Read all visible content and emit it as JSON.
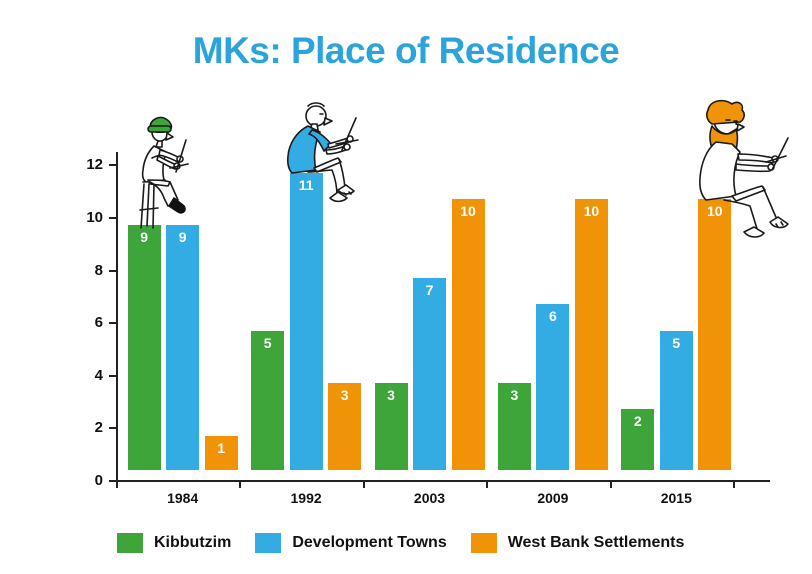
{
  "title": "MKs: Place of Residence",
  "title_color": "#2BA4DC",
  "chart_data": {
    "type": "bar",
    "title": "MKs: Place of Residence",
    "categories": [
      "1984",
      "1992",
      "2003",
      "2009",
      "2015"
    ],
    "series": [
      {
        "name": "Kibbutzim",
        "color": "#3EA53B",
        "values": [
          9,
          5,
          3,
          3,
          2
        ]
      },
      {
        "name": "Development Towns",
        "color": "#33ACE3",
        "values": [
          9,
          11,
          7,
          6,
          5
        ]
      },
      {
        "name": "West Bank Settlements",
        "color": "#F09306",
        "values": [
          1,
          3,
          10,
          10,
          10
        ]
      }
    ],
    "xlabel": "",
    "ylabel": "",
    "ylim": [
      0,
      12
    ],
    "yticks": [
      0,
      2,
      4,
      6,
      8,
      10,
      12
    ],
    "grid": false,
    "bar_value_labels": true,
    "bar_label_color": "#ffffff",
    "legend_position": "bottom"
  },
  "figures": [
    {
      "name": "seated-worker-green-beanie-illustration",
      "accent": "#3EA53B"
    },
    {
      "name": "seated-worker-blue-shirt-illustration",
      "accent": "#33ACE3"
    },
    {
      "name": "seated-worker-orange-beard-illustration",
      "accent": "#F09306"
    }
  ]
}
